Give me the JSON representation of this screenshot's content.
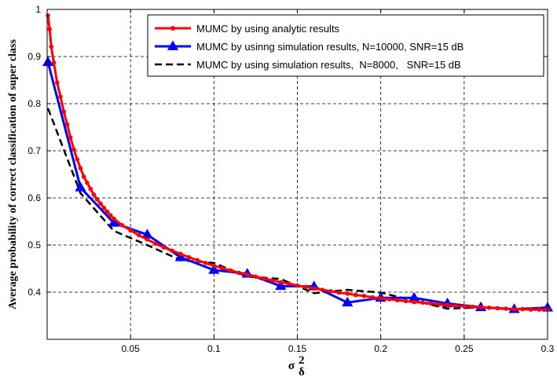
{
  "chart_data": {
    "type": "line",
    "title": "",
    "xlabel": {
      "symbol": "σ",
      "superscript": "2",
      "subscript": "δ"
    },
    "ylabel": "Average probability of correct classification of super class",
    "xlim": [
      0,
      0.3
    ],
    "ylim": [
      0.3,
      1.0
    ],
    "xticks": [
      0.05,
      0.1,
      0.15,
      0.2,
      0.25,
      0.3
    ],
    "xtick_labels": [
      "0.05",
      "0.1",
      "0.15",
      "0.2",
      "0.25",
      "0.3"
    ],
    "yticks": [
      0.4,
      0.5,
      0.6,
      0.7,
      0.8,
      0.9,
      1.0
    ],
    "ytick_labels": [
      "0.4",
      "0.5",
      "0.6",
      "0.7",
      "0.8",
      "0.9",
      "1"
    ],
    "grid": true,
    "legend_position": "top-right",
    "series": [
      {
        "name": "MUMC by using analytic results",
        "color": "#ff0000",
        "marker": "dot",
        "dash": "solid",
        "x": [
          0.0005,
          0.0015,
          0.0025,
          0.004,
          0.006,
          0.008,
          0.01,
          0.012,
          0.014,
          0.016,
          0.018,
          0.02,
          0.022,
          0.024,
          0.026,
          0.028,
          0.03,
          0.032,
          0.034,
          0.036,
          0.038,
          0.04,
          0.045,
          0.05,
          0.055,
          0.06,
          0.065,
          0.07,
          0.075,
          0.08,
          0.085,
          0.09,
          0.095,
          0.1,
          0.105,
          0.11,
          0.115,
          0.12,
          0.125,
          0.13,
          0.135,
          0.14,
          0.145,
          0.15,
          0.155,
          0.16,
          0.165,
          0.17,
          0.175,
          0.18,
          0.185,
          0.19,
          0.195,
          0.2,
          0.205,
          0.21,
          0.215,
          0.22,
          0.225,
          0.23,
          0.235,
          0.24,
          0.245,
          0.25,
          0.255,
          0.26,
          0.265,
          0.27,
          0.275,
          0.28,
          0.285,
          0.29,
          0.295,
          0.3
        ],
        "y": [
          0.987,
          0.958,
          0.921,
          0.887,
          0.845,
          0.815,
          0.783,
          0.756,
          0.728,
          0.703,
          0.682,
          0.663,
          0.645,
          0.632,
          0.619,
          0.607,
          0.597,
          0.588,
          0.579,
          0.571,
          0.563,
          0.556,
          0.542,
          0.531,
          0.521,
          0.512,
          0.503,
          0.495,
          0.488,
          0.481,
          0.474,
          0.468,
          0.462,
          0.456,
          0.451,
          0.446,
          0.441,
          0.437,
          0.433,
          0.429,
          0.425,
          0.421,
          0.418,
          0.414,
          0.411,
          0.408,
          0.405,
          0.402,
          0.399,
          0.397,
          0.394,
          0.392,
          0.389,
          0.387,
          0.385,
          0.383,
          0.381,
          0.379,
          0.378,
          0.376,
          0.374,
          0.373,
          0.371,
          0.37,
          0.369,
          0.368,
          0.367,
          0.366,
          0.365,
          0.364,
          0.364,
          0.363,
          0.363,
          0.364
        ]
      },
      {
        "name": "MUMC by usinng simulation results, N=10000, SNR=15 dB",
        "color": "#0000ff",
        "marker": "triangle",
        "dash": "solid",
        "x": [
          0.0005,
          0.02,
          0.04,
          0.06,
          0.08,
          0.1,
          0.12,
          0.14,
          0.16,
          0.18,
          0.2,
          0.22,
          0.24,
          0.26,
          0.28,
          0.3
        ],
        "y": [
          0.888,
          0.622,
          0.547,
          0.522,
          0.474,
          0.447,
          0.439,
          0.413,
          0.412,
          0.378,
          0.388,
          0.388,
          0.376,
          0.368,
          0.364,
          0.367
        ]
      },
      {
        "name": "MUMC by using simulation results,  N=8000,   SNR=15 dB",
        "color": "#000000",
        "marker": "none",
        "dash": "dashed",
        "x": [
          0.0005,
          0.02,
          0.04,
          0.06,
          0.08,
          0.1,
          0.12,
          0.14,
          0.16,
          0.18,
          0.2,
          0.22,
          0.24,
          0.26,
          0.28,
          0.3
        ],
        "y": [
          0.79,
          0.61,
          0.53,
          0.5,
          0.468,
          0.462,
          0.433,
          0.428,
          0.398,
          0.405,
          0.399,
          0.382,
          0.365,
          0.368,
          0.363,
          0.368
        ]
      }
    ]
  }
}
